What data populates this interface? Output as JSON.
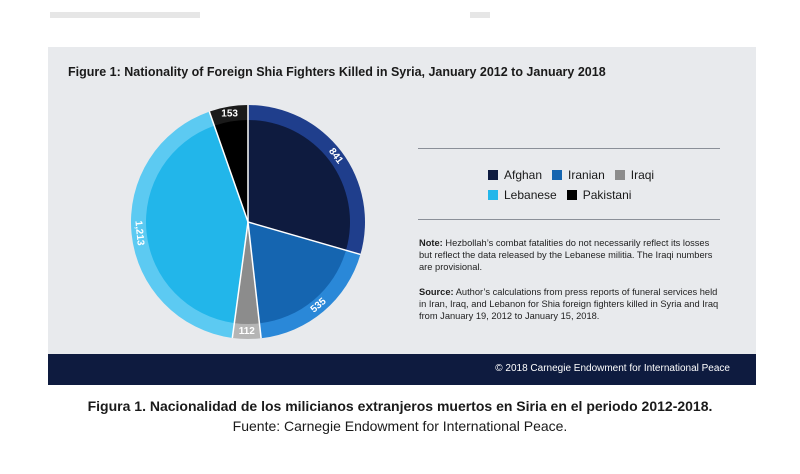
{
  "figure": {
    "title": "Figure 1:  Nationality of Foreign Shia Fighters Killed in Syria, January 2012 to January 2018",
    "note_label": "Note:",
    "note_text": "Hezbollah’s combat fatalities do not necessarily reflect its losses but reflect the data released by the Lebanese militia. The Iraqi numbers are provisional.",
    "source_label": "Source:",
    "source_text": "Author’s calculations from press reports of funeral services held in Iran, Iraq, and Lebanon for Shia foreign fighters killed in Syria and Iraq from January 19, 2012 to January 15, 2018.",
    "copyright": "© 2018 Carnegie Endowment for International Peace"
  },
  "caption": {
    "line1": "Figura 1. Nacionalidad de los milicianos extranjeros muertos en Siria en el periodo 2012-2018.",
    "line2": "Fuente: Carnegie Endowment for International Peace."
  },
  "chart_data": {
    "type": "pie",
    "title": "Figure 1:  Nationality of Foreign Shia Fighters Killed in Syria, January 2012 to January 2018",
    "categories": [
      "Afghan",
      "Iranian",
      "Iraqi",
      "Lebanese",
      "Pakistani"
    ],
    "values": [
      841,
      535,
      112,
      1213,
      153
    ],
    "labels": [
      "841",
      "535",
      "112",
      "1,213",
      "153"
    ],
    "colors": [
      "#0e1b3f",
      "#1565b0",
      "#8c8c8c",
      "#22b6ea",
      "#000000"
    ],
    "ring_colors": [
      "#1f3e8c",
      "#2a88d8",
      "#b5b5b5",
      "#5ccaf2",
      "#1a1a1a"
    ],
    "legend_placement": "right"
  }
}
